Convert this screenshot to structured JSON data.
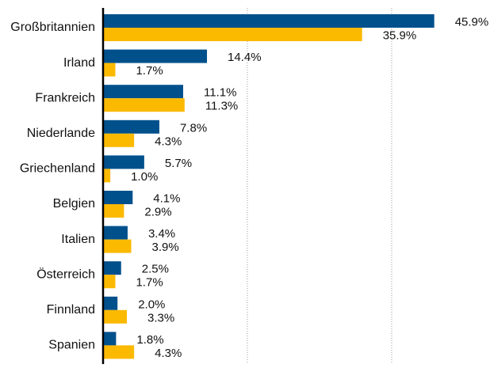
{
  "chart_data": {
    "type": "hbar",
    "categories": [
      "Großbritannien",
      "Irland",
      "Frankreich",
      "Niederlande",
      "Griechenland",
      "Belgien",
      "Italien",
      "Österreich",
      "Finnland",
      "Spanien"
    ],
    "series": [
      {
        "color": "#00508c",
        "values": [
          45.9,
          14.4,
          11.1,
          7.8,
          5.7,
          4.1,
          3.4,
          2.5,
          2.0,
          1.8
        ],
        "value_labels": [
          "45.9%",
          "14.4%",
          "11.1%",
          "7.8%",
          "5.7%",
          "4.1%",
          "3.4%",
          "2.5%",
          "2.0%",
          "1.8%"
        ]
      },
      {
        "color": "#fbb900",
        "values": [
          35.9,
          1.7,
          11.3,
          4.3,
          1.0,
          2.9,
          3.9,
          1.7,
          3.3,
          4.3
        ],
        "value_labels": [
          "35.9%",
          "1.7%",
          "11.3%",
          "4.3%",
          "1.0%",
          "2.9%",
          "3.9%",
          "1.7%",
          "3.3%",
          "4.3%"
        ]
      }
    ],
    "xlim": [
      0,
      50
    ],
    "xticks": [
      20,
      40
    ],
    "grid": true
  }
}
